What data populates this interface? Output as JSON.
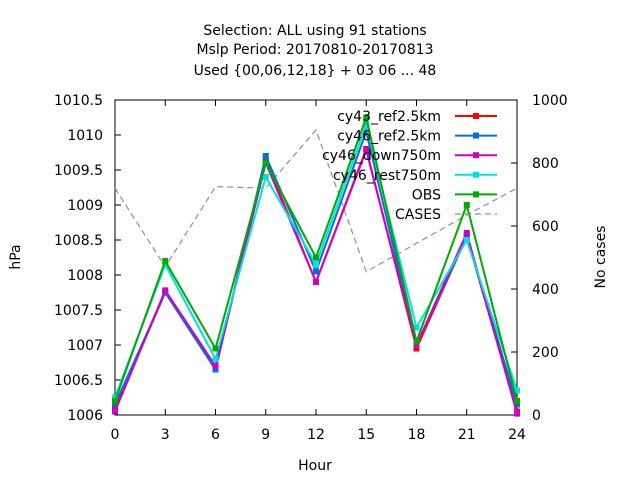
{
  "chart_data": {
    "type": "line",
    "title_lines": [
      "Selection: ALL using    91 stations",
      "Mslp   Period: 20170810-20170813",
      "Used {00,06,12,18} + 03 06 ... 48"
    ],
    "xlabel": "Hour",
    "ylabel": "hPa",
    "y2label": "No cases",
    "x": [
      0,
      3,
      6,
      9,
      12,
      15,
      18,
      21,
      24
    ],
    "xlim": [
      0,
      24
    ],
    "ylim": [
      1006,
      1010.5
    ],
    "y2lim": [
      0,
      1000
    ],
    "x_ticks": [
      "0",
      "3",
      "6",
      "9",
      "12",
      "15",
      "18",
      "21",
      "24"
    ],
    "y_ticks": [
      "1006",
      "1006.5",
      "1007",
      "1007.5",
      "1008",
      "1008.5",
      "1009",
      "1009.5",
      "1010",
      "1010.5"
    ],
    "y2_ticks": [
      "0",
      "200",
      "400",
      "600",
      "800",
      "1000"
    ],
    "grid": false,
    "legend_position": "top-right",
    "series": [
      {
        "name": "cy43_ref2.5km",
        "color": "#ff0000",
        "values": [
          1006.1,
          1007.75,
          1006.65,
          1009.65,
          1007.9,
          1009.8,
          1006.95,
          1008.55,
          1006.05
        ]
      },
      {
        "name": "cy46_ref2.5km",
        "color": "#0072d8",
        "values": [
          1006.15,
          1007.75,
          1006.65,
          1009.7,
          1008.05,
          1010.05,
          1007.0,
          1008.55,
          1006.15
        ]
      },
      {
        "name": "cy46_down750m",
        "color": "#cc00cc",
        "values": [
          1006.05,
          1007.78,
          1006.7,
          1009.6,
          1007.9,
          1009.78,
          1007.0,
          1008.6,
          1006.02
        ]
      },
      {
        "name": "cy46_rest750m",
        "color": "#00e0e0",
        "values": [
          1006.25,
          1008.15,
          1006.8,
          1009.4,
          1008.15,
          1010.15,
          1007.25,
          1008.5,
          1006.35
        ]
      },
      {
        "name": "OBS",
        "color": "#00aa00",
        "values": [
          1006.2,
          1008.2,
          1006.95,
          1009.6,
          1008.25,
          1010.25,
          1007.05,
          1009.0,
          1006.2
        ]
      },
      {
        "name": "CASES",
        "color": "#909090",
        "dashed": true,
        "axis": "right",
        "values": [
          720,
          470,
          725,
          720,
          905,
          455,
          545,
          635,
          720
        ]
      }
    ]
  }
}
